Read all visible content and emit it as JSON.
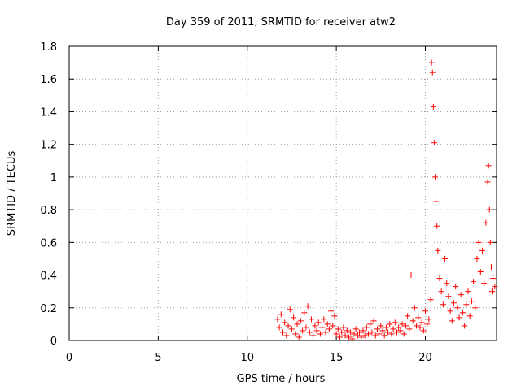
{
  "chart_data": {
    "type": "scatter",
    "title": "Day 359 of 2011, SRMTID for receiver atw2",
    "xlabel": "GPS time / hours",
    "ylabel": "SRMTID / TECUs",
    "xlim": [
      0,
      24
    ],
    "ylim": [
      0,
      1.8
    ],
    "xticks": [
      0,
      5,
      10,
      15,
      20
    ],
    "xtick_labels": [
      "0",
      "5",
      "10",
      "15",
      "20"
    ],
    "yticks": [
      0,
      0.2,
      0.4,
      0.6,
      0.8,
      1.0,
      1.2,
      1.4,
      1.6,
      1.8
    ],
    "ytick_labels": [
      "0",
      "0.2",
      "0.4",
      "0.6",
      "0.8",
      "1",
      "1.2",
      "1.4",
      "1.6",
      "1.8"
    ],
    "grid": true,
    "marker": "+",
    "color": "#ff0000",
    "series": [
      {
        "name": "SRMTID",
        "points": [
          [
            11.7,
            0.13
          ],
          [
            11.8,
            0.08
          ],
          [
            11.9,
            0.16
          ],
          [
            12.0,
            0.05
          ],
          [
            12.1,
            0.11
          ],
          [
            12.2,
            0.03
          ],
          [
            12.3,
            0.09
          ],
          [
            12.4,
            0.19
          ],
          [
            12.5,
            0.07
          ],
          [
            12.6,
            0.14
          ],
          [
            12.7,
            0.04
          ],
          [
            12.8,
            0.1
          ],
          [
            12.9,
            0.02
          ],
          [
            13.0,
            0.12
          ],
          [
            13.1,
            0.06
          ],
          [
            13.2,
            0.17
          ],
          [
            13.3,
            0.08
          ],
          [
            13.4,
            0.21
          ],
          [
            13.5,
            0.05
          ],
          [
            13.6,
            0.13
          ],
          [
            13.7,
            0.03
          ],
          [
            13.8,
            0.09
          ],
          [
            13.9,
            0.06
          ],
          [
            14.0,
            0.11
          ],
          [
            14.1,
            0.04
          ],
          [
            14.2,
            0.08
          ],
          [
            14.3,
            0.13
          ],
          [
            14.4,
            0.05
          ],
          [
            14.5,
            0.1
          ],
          [
            14.6,
            0.07
          ],
          [
            14.7,
            0.18
          ],
          [
            14.8,
            0.09
          ],
          [
            14.9,
            0.15
          ],
          [
            15.0,
            0.04
          ],
          [
            15.1,
            0.07
          ],
          [
            15.2,
            0.02
          ],
          [
            15.3,
            0.05
          ],
          [
            15.4,
            0.08
          ],
          [
            15.5,
            0.03
          ],
          [
            15.6,
            0.06
          ],
          [
            15.7,
            0.02
          ],
          [
            15.8,
            0.05
          ],
          [
            15.9,
            0.01
          ],
          [
            16.0,
            0.04
          ],
          [
            16.1,
            0.07
          ],
          [
            16.2,
            0.03
          ],
          [
            16.3,
            0.05
          ],
          [
            16.4,
            0.02
          ],
          [
            16.5,
            0.06
          ],
          [
            16.6,
            0.03
          ],
          [
            16.7,
            0.08
          ],
          [
            16.8,
            0.04
          ],
          [
            16.9,
            0.1
          ],
          [
            17.0,
            0.05
          ],
          [
            17.1,
            0.12
          ],
          [
            17.2,
            0.03
          ],
          [
            17.3,
            0.07
          ],
          [
            17.4,
            0.04
          ],
          [
            17.5,
            0.09
          ],
          [
            17.6,
            0.06
          ],
          [
            17.7,
            0.03
          ],
          [
            17.8,
            0.08
          ],
          [
            17.9,
            0.05
          ],
          [
            18.0,
            0.1
          ],
          [
            18.1,
            0.04
          ],
          [
            18.2,
            0.07
          ],
          [
            18.3,
            0.11
          ],
          [
            18.4,
            0.05
          ],
          [
            18.5,
            0.08
          ],
          [
            18.6,
            0.06
          ],
          [
            18.7,
            0.1
          ],
          [
            18.8,
            0.04
          ],
          [
            18.9,
            0.09
          ],
          [
            19.0,
            0.15
          ],
          [
            19.1,
            0.07
          ],
          [
            19.2,
            0.4
          ],
          [
            19.3,
            0.12
          ],
          [
            19.4,
            0.2
          ],
          [
            19.5,
            0.09
          ],
          [
            19.6,
            0.14
          ],
          [
            19.7,
            0.08
          ],
          [
            19.8,
            0.11
          ],
          [
            19.9,
            0.06
          ],
          [
            20.0,
            0.18
          ],
          [
            20.1,
            0.1
          ],
          [
            20.2,
            0.13
          ],
          [
            20.3,
            0.25
          ],
          [
            20.35,
            1.7
          ],
          [
            20.4,
            1.64
          ],
          [
            20.45,
            1.43
          ],
          [
            20.5,
            1.21
          ],
          [
            20.55,
            1.0
          ],
          [
            20.6,
            0.85
          ],
          [
            20.65,
            0.7
          ],
          [
            20.7,
            0.55
          ],
          [
            20.8,
            0.38
          ],
          [
            20.9,
            0.3
          ],
          [
            21.0,
            0.22
          ],
          [
            21.1,
            0.5
          ],
          [
            21.2,
            0.35
          ],
          [
            21.3,
            0.27
          ],
          [
            21.4,
            0.18
          ],
          [
            21.5,
            0.12
          ],
          [
            21.6,
            0.23
          ],
          [
            21.7,
            0.33
          ],
          [
            21.8,
            0.2
          ],
          [
            21.9,
            0.14
          ],
          [
            22.0,
            0.28
          ],
          [
            22.1,
            0.17
          ],
          [
            22.2,
            0.09
          ],
          [
            22.3,
            0.22
          ],
          [
            22.4,
            0.3
          ],
          [
            22.5,
            0.15
          ],
          [
            22.6,
            0.24
          ],
          [
            22.7,
            0.36
          ],
          [
            22.8,
            0.2
          ],
          [
            22.9,
            0.5
          ],
          [
            23.0,
            0.6
          ],
          [
            23.1,
            0.42
          ],
          [
            23.2,
            0.55
          ],
          [
            23.3,
            0.35
          ],
          [
            23.4,
            0.72
          ],
          [
            23.5,
            0.97
          ],
          [
            23.55,
            1.07
          ],
          [
            23.6,
            0.8
          ],
          [
            23.65,
            0.6
          ],
          [
            23.7,
            0.45
          ],
          [
            23.75,
            0.3
          ],
          [
            23.8,
            0.38
          ],
          [
            23.9,
            0.33
          ]
        ]
      }
    ]
  }
}
